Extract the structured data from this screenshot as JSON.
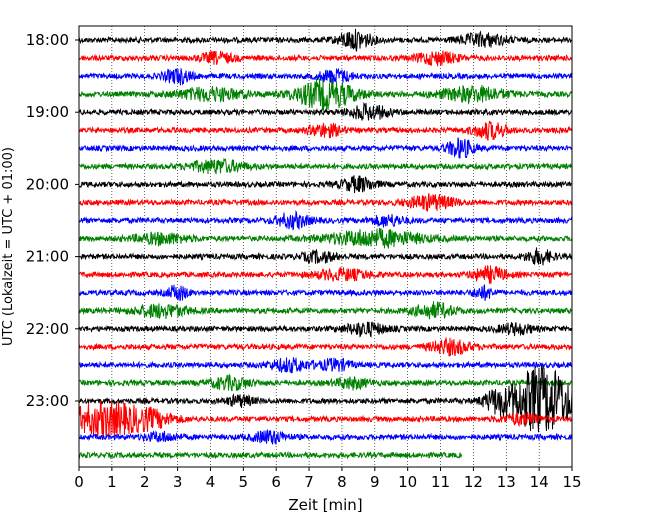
{
  "chart_data": {
    "type": "line",
    "title": "",
    "xlabel": "Zeit  [min]",
    "ylabel": "UTC (Lokalzeit = UTC + 01:00)",
    "xlim": [
      0,
      15
    ],
    "x_ticks": [
      "0",
      "1",
      "2",
      "3",
      "4",
      "5",
      "6",
      "7",
      "8",
      "9",
      "10",
      "11",
      "12",
      "13",
      "14",
      "15"
    ],
    "y_ticks": [
      "18:00",
      "19:00",
      "20:00",
      "21:00",
      "22:00",
      "23:00"
    ],
    "grid": "vertical dotted at each minute",
    "row_interval_min": 15,
    "row_colors": [
      "#000000",
      "#ff0000",
      "#0000ff",
      "#008000"
    ],
    "rows": [
      {
        "start": "18:00",
        "color": "#000000",
        "end_min": 15,
        "events": [
          {
            "t": 8.4,
            "amp": 9,
            "w": 0.5
          },
          {
            "t": 12.3,
            "amp": 6,
            "w": 0.7
          }
        ]
      },
      {
        "start": "18:15",
        "color": "#ff0000",
        "end_min": 15,
        "events": [
          {
            "t": 4.2,
            "amp": 5,
            "w": 0.5
          },
          {
            "t": 10.9,
            "amp": 6,
            "w": 0.6
          }
        ]
      },
      {
        "start": "18:30",
        "color": "#0000ff",
        "end_min": 15,
        "events": [
          {
            "t": 3.0,
            "amp": 7,
            "w": 0.4
          },
          {
            "t": 7.8,
            "amp": 6,
            "w": 0.5
          }
        ]
      },
      {
        "start": "18:45",
        "color": "#008000",
        "end_min": 15,
        "events": [
          {
            "t": 7.5,
            "amp": 14,
            "w": 0.9
          },
          {
            "t": 4.0,
            "amp": 6,
            "w": 1.0
          },
          {
            "t": 12.0,
            "amp": 7,
            "w": 1.0
          }
        ]
      },
      {
        "start": "19:00",
        "color": "#000000",
        "end_min": 15,
        "events": [
          {
            "t": 8.8,
            "amp": 7,
            "w": 0.6
          }
        ]
      },
      {
        "start": "19:15",
        "color": "#ff0000",
        "end_min": 15,
        "events": [
          {
            "t": 7.5,
            "amp": 6,
            "w": 0.5
          },
          {
            "t": 12.5,
            "amp": 8,
            "w": 0.5
          }
        ]
      },
      {
        "start": "19:30",
        "color": "#0000ff",
        "end_min": 15,
        "events": [
          {
            "t": 11.6,
            "amp": 9,
            "w": 0.4
          }
        ]
      },
      {
        "start": "19:45",
        "color": "#008000",
        "end_min": 15,
        "events": [
          {
            "t": 4.2,
            "amp": 6,
            "w": 0.8
          }
        ]
      },
      {
        "start": "20:00",
        "color": "#000000",
        "end_min": 15,
        "events": [
          {
            "t": 8.5,
            "amp": 7,
            "w": 0.5
          }
        ]
      },
      {
        "start": "20:15",
        "color": "#ff0000",
        "end_min": 15,
        "events": [
          {
            "t": 10.7,
            "amp": 7,
            "w": 0.7
          }
        ]
      },
      {
        "start": "20:30",
        "color": "#0000ff",
        "end_min": 15,
        "events": [
          {
            "t": 6.5,
            "amp": 7,
            "w": 0.5
          },
          {
            "t": 9.4,
            "amp": 5,
            "w": 0.5
          }
        ]
      },
      {
        "start": "20:45",
        "color": "#008000",
        "end_min": 15,
        "events": [
          {
            "t": 9.0,
            "amp": 8,
            "w": 1.4
          },
          {
            "t": 2.5,
            "amp": 5,
            "w": 0.8
          }
        ]
      },
      {
        "start": "21:00",
        "color": "#000000",
        "end_min": 15,
        "events": [
          {
            "t": 7.3,
            "amp": 5,
            "w": 0.5
          },
          {
            "t": 14.0,
            "amp": 7,
            "w": 0.4
          }
        ]
      },
      {
        "start": "21:15",
        "color": "#ff0000",
        "end_min": 15,
        "events": [
          {
            "t": 12.5,
            "amp": 7,
            "w": 0.5
          },
          {
            "t": 8.0,
            "amp": 5,
            "w": 0.8
          }
        ]
      },
      {
        "start": "21:30",
        "color": "#0000ff",
        "end_min": 15,
        "events": [
          {
            "t": 3.0,
            "amp": 7,
            "w": 0.3
          },
          {
            "t": 12.3,
            "amp": 6,
            "w": 0.3
          }
        ]
      },
      {
        "start": "21:45",
        "color": "#008000",
        "end_min": 15,
        "events": [
          {
            "t": 2.5,
            "amp": 6,
            "w": 0.8
          },
          {
            "t": 10.8,
            "amp": 7,
            "w": 0.6
          }
        ]
      },
      {
        "start": "22:00",
        "color": "#000000",
        "end_min": 15,
        "events": [
          {
            "t": 8.7,
            "amp": 6,
            "w": 0.6
          },
          {
            "t": 13.3,
            "amp": 5,
            "w": 0.5
          }
        ]
      },
      {
        "start": "22:15",
        "color": "#ff0000",
        "end_min": 15,
        "events": [
          {
            "t": 11.3,
            "amp": 7,
            "w": 0.6
          }
        ]
      },
      {
        "start": "22:30",
        "color": "#0000ff",
        "end_min": 15,
        "events": [
          {
            "t": 6.4,
            "amp": 6,
            "w": 0.6
          },
          {
            "t": 7.8,
            "amp": 5,
            "w": 0.5
          }
        ]
      },
      {
        "start": "22:45",
        "color": "#008000",
        "end_min": 15,
        "events": [
          {
            "t": 4.6,
            "amp": 6,
            "w": 0.6
          },
          {
            "t": 8.3,
            "amp": 5,
            "w": 0.5
          }
        ]
      },
      {
        "start": "23:00",
        "color": "#000000",
        "end_min": 15,
        "events": [
          {
            "t": 14.1,
            "amp": 34,
            "w": 1.0
          },
          {
            "t": 12.7,
            "amp": 8,
            "w": 0.4
          },
          {
            "t": 4.9,
            "amp": 5,
            "w": 0.4
          }
        ]
      },
      {
        "start": "23:15",
        "color": "#ff0000",
        "end_min": 15,
        "events": [
          {
            "t": 0.7,
            "amp": 16,
            "w": 1.0
          },
          {
            "t": 2.1,
            "amp": 8,
            "w": 0.8
          },
          {
            "t": 13.5,
            "amp": 5,
            "w": 0.6
          }
        ]
      },
      {
        "start": "23:30",
        "color": "#0000ff",
        "end_min": 15,
        "events": [
          {
            "t": 5.8,
            "amp": 6,
            "w": 0.5
          },
          {
            "t": 2.5,
            "amp": 4,
            "w": 0.5
          }
        ]
      },
      {
        "start": "23:45",
        "color": "#008000",
        "end_min": 11.65,
        "events": []
      }
    ]
  }
}
